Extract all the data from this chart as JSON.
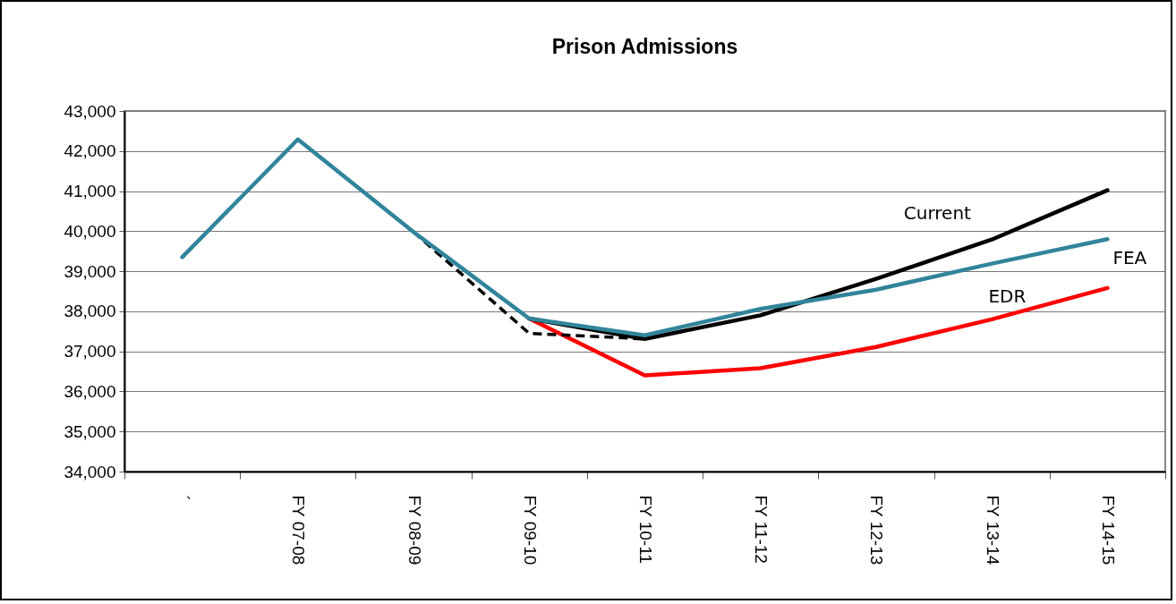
{
  "chart_data": {
    "type": "line",
    "title": "Prison Admissions",
    "categories": [
      "´",
      "FY 07-08",
      "FY 08-09",
      "FY 09-10",
      "FY 10-11",
      "FY 11-12",
      "FY 12-13",
      "FY 13-14",
      "FY 14-15"
    ],
    "series": [
      {
        "name": "EDR",
        "color": "#ff0000",
        "values": [
          null,
          null,
          null,
          37820,
          36400,
          36580,
          37110,
          37800,
          38580
        ]
      },
      {
        "color": "#000000",
        "line_style": "dashed",
        "values": [
          null,
          null,
          39980,
          37450,
          37310,
          null,
          null,
          null,
          null
        ]
      },
      {
        "name": "Current",
        "color": "#000000",
        "values": [
          null,
          null,
          null,
          37820,
          37310,
          37900,
          38810,
          39790,
          41020
        ]
      },
      {
        "name": "FEA",
        "color": "#31849b",
        "values": [
          39350,
          42290,
          39980,
          37820,
          37400,
          38060,
          38540,
          39190,
          39800
        ]
      }
    ],
    "ylim": [
      34000,
      43000
    ],
    "yticks": [
      {
        "value": 34000,
        "label": "34,000"
      },
      {
        "value": 35000,
        "label": "35,000"
      },
      {
        "value": 36000,
        "label": "36,000"
      },
      {
        "value": 37000,
        "label": "37,000"
      },
      {
        "value": 38000,
        "label": "38,000"
      },
      {
        "value": 39000,
        "label": "39,000"
      },
      {
        "value": 40000,
        "label": "40,000"
      },
      {
        "value": 41000,
        "label": "41,000"
      },
      {
        "value": 42000,
        "label": "42,000"
      },
      {
        "value": 43000,
        "label": "43,000"
      }
    ],
    "grid": "y",
    "line_style": "solid",
    "marker": "none"
  }
}
